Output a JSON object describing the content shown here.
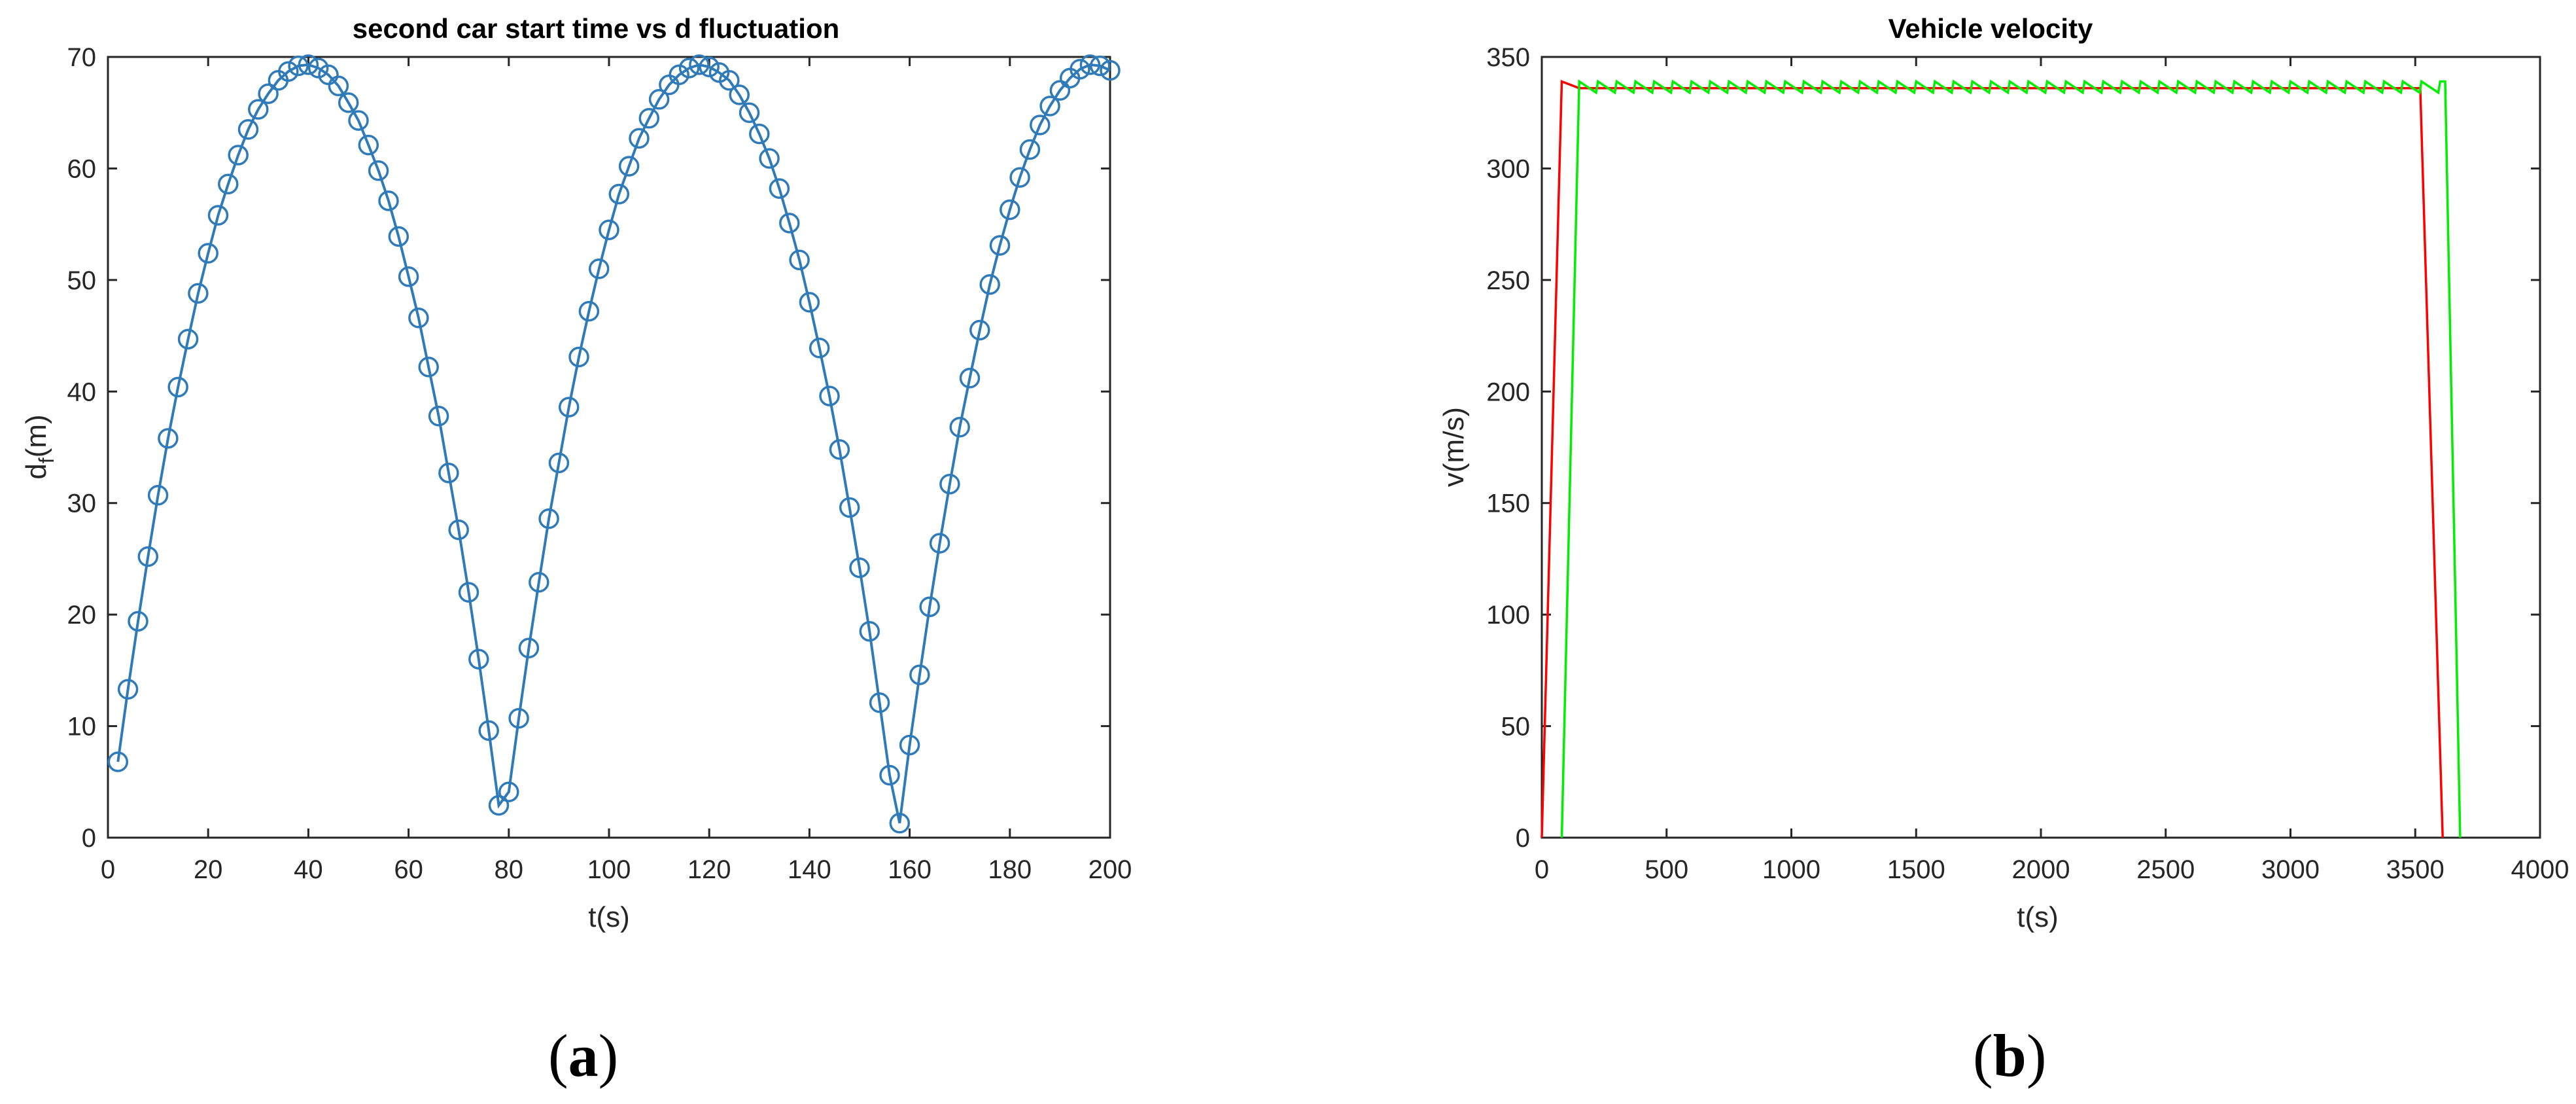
{
  "captions": {
    "a_open": "(",
    "a_letter": "a",
    "a_close": ")",
    "b_open": "(",
    "b_letter": "b",
    "b_close": ")"
  },
  "chart_data": [
    {
      "type": "line",
      "title": "second car start time vs d fluctuation",
      "xlabel": "t(s)",
      "ylabel_base": "d",
      "ylabel_sub": "f",
      "ylabel_tail": "(m)",
      "xlim": [
        0,
        200
      ],
      "ylim": [
        0,
        70
      ],
      "xticks": [
        0,
        20,
        40,
        60,
        80,
        100,
        120,
        140,
        160,
        180,
        200
      ],
      "yticks": [
        0,
        10,
        20,
        30,
        40,
        50,
        60,
        70
      ],
      "grid": false,
      "marker": "circle",
      "color": "#2f7ab8",
      "series": [
        {
          "x": [
            2,
            4,
            6,
            8,
            10,
            12,
            14,
            16,
            18,
            20,
            22,
            24,
            26,
            28,
            30,
            32,
            34,
            36,
            38,
            40,
            42,
            44,
            46,
            48,
            50,
            52,
            54,
            56,
            58,
            60,
            62,
            64,
            66,
            68,
            70,
            72,
            74,
            76,
            78,
            80,
            82,
            84,
            86,
            88,
            90,
            92,
            94,
            96,
            98,
            100,
            102,
            104,
            106,
            108,
            110,
            112,
            114,
            116,
            118,
            120,
            122,
            124,
            126,
            128,
            130,
            132,
            134,
            136,
            138,
            140,
            142,
            144,
            146,
            148,
            150,
            152,
            154,
            156,
            158,
            160,
            162,
            164,
            166,
            168,
            170,
            172,
            174,
            176,
            178,
            180,
            182,
            184,
            186,
            188,
            190,
            192,
            194,
            196,
            198,
            200
          ],
          "y": [
            6.8,
            13.3,
            19.4,
            25.2,
            30.7,
            35.8,
            40.4,
            44.7,
            48.8,
            52.4,
            55.8,
            58.6,
            61.2,
            63.5,
            65.3,
            66.7,
            67.9,
            68.7,
            69.2,
            69.3,
            69.0,
            68.4,
            67.4,
            65.9,
            64.3,
            62.1,
            59.8,
            57.1,
            53.9,
            50.3,
            46.6,
            42.2,
            37.8,
            32.7,
            27.6,
            22.0,
            16.0,
            9.6,
            2.9,
            4.1,
            10.7,
            17.0,
            22.9,
            28.6,
            33.6,
            38.6,
            43.1,
            47.2,
            51.0,
            54.5,
            57.7,
            60.2,
            62.7,
            64.5,
            66.2,
            67.5,
            68.4,
            69.0,
            69.3,
            69.1,
            68.6,
            67.9,
            66.6,
            65.0,
            63.1,
            60.9,
            58.2,
            55.1,
            51.8,
            48.0,
            43.9,
            39.6,
            34.8,
            29.6,
            24.2,
            18.5,
            12.1,
            5.6,
            1.3,
            8.3,
            14.6,
            20.7,
            26.4,
            31.7,
            36.8,
            41.2,
            45.5,
            49.6,
            53.1,
            56.3,
            59.2,
            61.7,
            63.9,
            65.6,
            67.0,
            68.1,
            68.9,
            69.3,
            69.2,
            68.8
          ]
        }
      ]
    },
    {
      "type": "line",
      "title": "Vehicle velocity",
      "xlabel": "t(s)",
      "ylabel": "v(m/s)",
      "xlim": [
        0,
        4000
      ],
      "ylim": [
        0,
        350
      ],
      "xticks": [
        0,
        500,
        1000,
        1500,
        2000,
        2500,
        3000,
        3500,
        4000
      ],
      "yticks": [
        0,
        50,
        100,
        150,
        200,
        250,
        300,
        350
      ],
      "grid": false,
      "series": [
        {
          "color": "#ff0000",
          "x": [
            0,
            80,
            150,
            3520,
            3610
          ],
          "y": [
            0,
            339,
            336,
            336,
            0
          ]
        },
        {
          "color": "#00ee00",
          "sawtooth": {
            "start": 150,
            "end": 3610,
            "period": 75,
            "high": 339,
            "low": 334
          },
          "x": [
            80,
            150,
            3610,
            3620,
            3680
          ],
          "y": [
            0,
            339,
            339,
            339,
            0
          ]
        }
      ]
    }
  ]
}
